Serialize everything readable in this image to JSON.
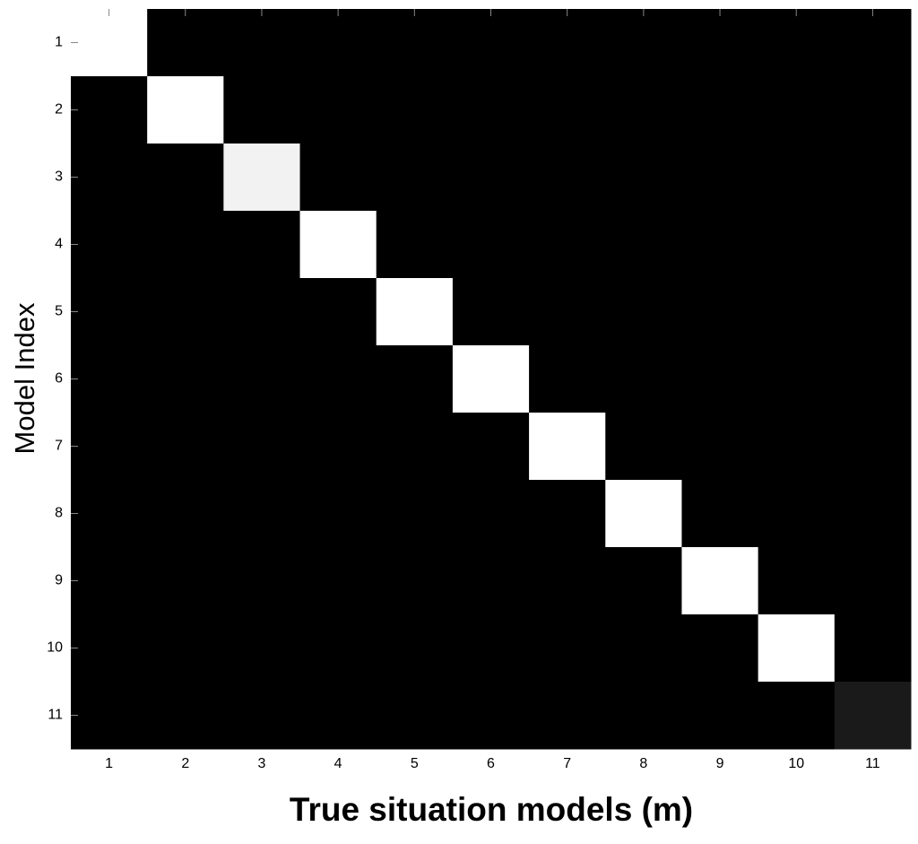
{
  "chart_data": {
    "type": "heatmap",
    "xlabel": "True situation models (m)",
    "ylabel": "Model Index",
    "x": [
      1,
      2,
      3,
      4,
      5,
      6,
      7,
      8,
      9,
      10,
      11
    ],
    "y": [
      1,
      2,
      3,
      4,
      5,
      6,
      7,
      8,
      9,
      10,
      11
    ],
    "colormap": "gray",
    "zlim": [
      0,
      1
    ],
    "values": [
      [
        1,
        0,
        0,
        0,
        0,
        0,
        0,
        0,
        0,
        0,
        0
      ],
      [
        0,
        1,
        0,
        0,
        0,
        0,
        0,
        0,
        0,
        0,
        0
      ],
      [
        0,
        0,
        0.95,
        0,
        0,
        0,
        0,
        0,
        0,
        0,
        0
      ],
      [
        0,
        0,
        0,
        1,
        0,
        0,
        0,
        0,
        0,
        0,
        0
      ],
      [
        0,
        0,
        0,
        0,
        1,
        0,
        0,
        0,
        0,
        0,
        0
      ],
      [
        0,
        0,
        0,
        0,
        0,
        1,
        0,
        0,
        0,
        0,
        0
      ],
      [
        0,
        0,
        0,
        0,
        0,
        0,
        1,
        0,
        0,
        0,
        0
      ],
      [
        0,
        0,
        0,
        0,
        0,
        0,
        0,
        1,
        0,
        0,
        0
      ],
      [
        0,
        0,
        0,
        0,
        0,
        0,
        0,
        0,
        1,
        0,
        0
      ],
      [
        0,
        0,
        0,
        0,
        0,
        0,
        0,
        0,
        0,
        1,
        0
      ],
      [
        0,
        0,
        0,
        0,
        0,
        0,
        0,
        0,
        0,
        0,
        0.1
      ]
    ]
  }
}
